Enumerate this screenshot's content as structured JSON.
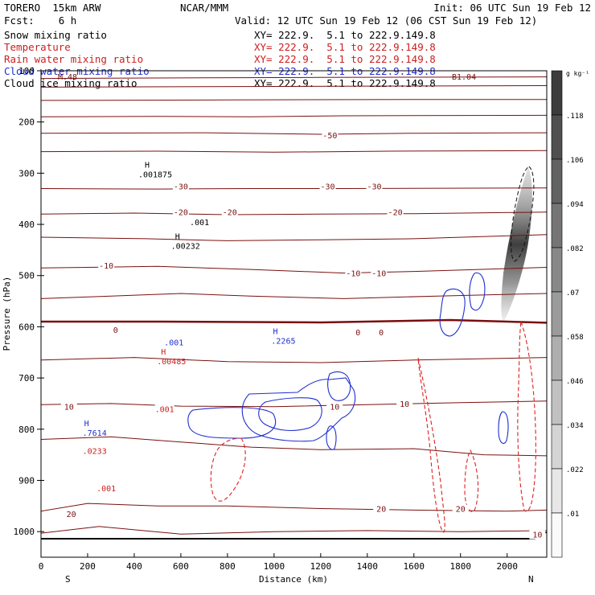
{
  "header": {
    "model": "TORERO  15km ARW",
    "center": "NCAR/MMM",
    "init": "Init: 06 UTC Sun 19 Feb 12",
    "fcst": "Fcst:    6 h",
    "valid": "Valid: 12 UTC Sun 19 Feb 12 (06 CST Sun 19 Feb 12)"
  },
  "legend": [
    {
      "name": "Snow mixing ratio",
      "xy": "XY= 222.9.  5.1 to 222.9.149.8",
      "color": "#000000"
    },
    {
      "name": "Temperature",
      "xy": "XY= 222.9.  5.1 to 222.9.149.8",
      "color": "#cc1f1f"
    },
    {
      "name": "Rain water mixing ratio",
      "xy": "XY= 222.9.  5.1 to 222.9.149.8",
      "color": "#cc1f1f"
    },
    {
      "name": "Cloud water mixing ratio",
      "xy": "XY= 222.9.  5.1 to 222.9.149.8",
      "color": "#1f2fd0"
    },
    {
      "name": "Cloud ice mixing ratio",
      "xy": "XY= 222.9.  5.1 to 222.9.149.8",
      "color": "#000000"
    }
  ],
  "chart_data": {
    "type": "cross-section contour",
    "xlabel": "Distance (km)",
    "ylabel": "Pressure (hPa)",
    "xlim": [
      0,
      2170
    ],
    "ylim": [
      1050,
      100
    ],
    "x_ticks": [
      "0",
      "200",
      "400",
      "600",
      "800",
      "1000",
      "1200",
      "1400",
      "1600",
      "1800",
      "2000"
    ],
    "y_ticks": [
      "100",
      "200",
      "300",
      "400",
      "500",
      "600",
      "700",
      "800",
      "900",
      "1000"
    ],
    "end_labels": {
      "left": "S",
      "right": "N"
    },
    "colorbar": {
      "unit": "g kg⁻¹",
      "labels": [
        ".118",
        ".106",
        ".094",
        ".082",
        ".07",
        ".058",
        ".046",
        ".034",
        ".022",
        ".01"
      ]
    },
    "temperature_labels": [
      {
        "text": "-50",
        "x": 1240,
        "p": 230
      },
      {
        "text": "-30",
        "x": 600,
        "p": 330
      },
      {
        "text": "-30",
        "x": 1230,
        "p": 330
      },
      {
        "text": "-30",
        "x": 1430,
        "p": 330
      },
      {
        "text": "-20",
        "x": 600,
        "p": 380
      },
      {
        "text": "-20",
        "x": 810,
        "p": 380
      },
      {
        "text": "-20",
        "x": 1520,
        "p": 380
      },
      {
        "text": "-10",
        "x": 280,
        "p": 485
      },
      {
        "text": "-10",
        "x": 1340,
        "p": 500
      },
      {
        "text": "-10",
        "x": 1450,
        "p": 500
      },
      {
        "text": "0",
        "x": 320,
        "p": 610
      },
      {
        "text": "0",
        "x": 1360,
        "p": 615
      },
      {
        "text": "0",
        "x": 1460,
        "p": 615
      },
      {
        "text": "10",
        "x": 120,
        "p": 760
      },
      {
        "text": "10",
        "x": 1260,
        "p": 760
      },
      {
        "text": "10",
        "x": 1560,
        "p": 755
      },
      {
        "text": "20",
        "x": 130,
        "p": 970
      },
      {
        "text": "20",
        "x": 1460,
        "p": 960
      },
      {
        "text": "20",
        "x": 1800,
        "p": 960
      },
      {
        "text": "10",
        "x": 2130,
        "p": 1010
      }
    ],
    "max_labels": [
      {
        "kind": "H",
        "value": ".001875",
        "x": 490,
        "p": 305,
        "color": "#000000"
      },
      {
        "kind": "H",
        "value": ".00232",
        "x": 620,
        "p": 445,
        "color": "#000000"
      },
      {
        "kind": "H",
        "value": ".00485",
        "x": 560,
        "p": 670,
        "color": "#cc1f1f"
      },
      {
        "kind": "H",
        "value": ".2265",
        "x": 1040,
        "p": 630,
        "color": "#1f2fd0"
      },
      {
        "kind": "H",
        "value": ".7614",
        "x": 230,
        "p": 810,
        "color": "#1f2fd0"
      },
      {
        "kind": "",
        "value": ".0233",
        "x": 230,
        "p": 845,
        "color": "#cc1f1f"
      }
    ],
    "contour_labels": [
      {
        "text": ".001",
        "x": 680,
        "p": 400,
        "color": "#000000"
      },
      {
        "text": ".001",
        "x": 570,
        "p": 635,
        "color": "#1f2fd0"
      },
      {
        "text": ".001",
        "x": 530,
        "p": 765,
        "color": "#cc1f1f"
      },
      {
        "text": ".001",
        "x": 280,
        "p": 920,
        "color": "#cc1f1f"
      }
    ],
    "clipped_labels": {
      "top_left": "M.48",
      "top_right": "B1.04"
    }
  }
}
